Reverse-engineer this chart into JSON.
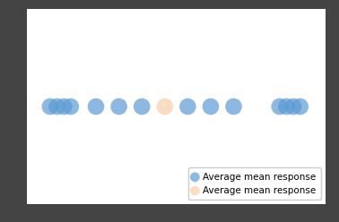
{
  "blue_x": [
    1,
    1.6,
    2.2,
    2.8,
    5,
    7,
    9,
    13,
    15,
    17,
    21,
    21.6,
    22.2,
    22.8
  ],
  "blue_y": [
    0,
    0,
    0,
    0,
    0,
    0,
    0,
    0,
    0,
    0,
    0,
    0,
    0,
    0
  ],
  "peach_x": [
    11
  ],
  "peach_y": [
    0
  ],
  "blue_color": "#5b9bd5",
  "peach_color": "#f8d7b8",
  "marker_size": 180,
  "blue_alpha": 0.7,
  "peach_alpha": 0.85,
  "legend_blue_label": "Average mean response",
  "legend_peach_label": "Average mean response",
  "xlim": [
    -1,
    25
  ],
  "ylim": [
    -3,
    3
  ],
  "background_color": "#ffffff",
  "outer_background": "#444444",
  "legend_fontsize": 7.5,
  "legend_loc": "lower right"
}
